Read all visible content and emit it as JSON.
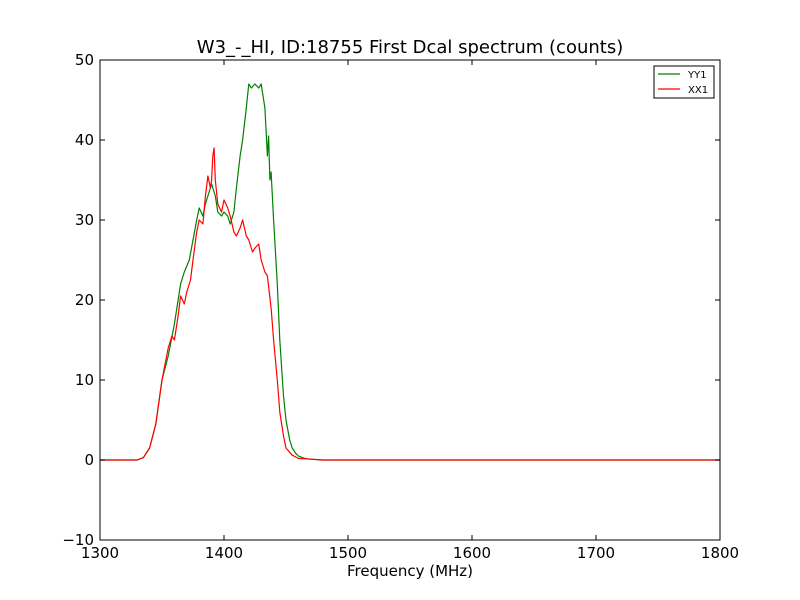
{
  "chart_data": {
    "type": "line",
    "title": "W3_-_HI, ID:18755 First Dcal spectrum (counts)",
    "xlabel": "Frequency (MHz)",
    "ylabel": "",
    "xlim": [
      1300,
      1800
    ],
    "ylim": [
      -10,
      50
    ],
    "xticks": [
      1300,
      1400,
      1500,
      1600,
      1700,
      1800
    ],
    "yticks": [
      -10,
      0,
      10,
      20,
      30,
      40,
      50
    ],
    "xtick_labels": [
      "1300",
      "1400",
      "1500",
      "1600",
      "1700",
      "1800"
    ],
    "ytick_labels": [
      "−10",
      "0",
      "10",
      "20",
      "30",
      "40",
      "50"
    ],
    "grid": false,
    "legend": "top-right",
    "series": [
      {
        "name": "YY1",
        "color": "#008000",
        "x": [
          1300,
          1330,
          1335,
          1340,
          1345,
          1350,
          1355,
          1360,
          1365,
          1368,
          1372,
          1375,
          1378,
          1380,
          1383,
          1385,
          1388,
          1390,
          1393,
          1395,
          1398,
          1400,
          1403,
          1405,
          1408,
          1410,
          1413,
          1415,
          1418,
          1420,
          1422,
          1425,
          1428,
          1430,
          1433,
          1435,
          1436,
          1437,
          1438,
          1440,
          1443,
          1445,
          1448,
          1450,
          1453,
          1455,
          1458,
          1460,
          1465,
          1470,
          1480,
          1500,
          1550,
          1600,
          1700,
          1800
        ],
        "y": [
          0,
          0,
          0.3,
          1.5,
          4.5,
          10,
          13,
          17,
          22,
          23.5,
          25,
          27.5,
          30,
          31.5,
          30.5,
          32,
          33.5,
          34.5,
          33,
          31,
          30.5,
          31,
          30.5,
          29.5,
          31,
          34,
          38,
          40,
          44,
          47,
          46.5,
          47,
          46.5,
          47,
          44,
          38,
          40.5,
          35,
          36,
          30,
          22,
          15,
          8,
          5,
          2.5,
          1.5,
          0.8,
          0.5,
          0.2,
          0.1,
          0,
          0,
          0,
          0,
          0,
          0
        ]
      },
      {
        "name": "XX1",
        "color": "#ff0000",
        "x": [
          1300,
          1330,
          1335,
          1340,
          1345,
          1350,
          1355,
          1358,
          1360,
          1363,
          1365,
          1368,
          1370,
          1373,
          1375,
          1378,
          1380,
          1383,
          1385,
          1387,
          1389,
          1390,
          1391,
          1392,
          1393,
          1395,
          1398,
          1400,
          1403,
          1405,
          1408,
          1410,
          1413,
          1415,
          1418,
          1420,
          1423,
          1425,
          1428,
          1430,
          1433,
          1435,
          1438,
          1440,
          1443,
          1445,
          1448,
          1450,
          1455,
          1460,
          1470,
          1480,
          1500,
          1550,
          1600,
          1700,
          1800
        ],
        "y": [
          0,
          0,
          0.3,
          1.5,
          4.5,
          10,
          14,
          15.5,
          15,
          18,
          20.5,
          19.5,
          21,
          22.5,
          25,
          28.5,
          30,
          29.5,
          33,
          35.5,
          34,
          35,
          38,
          39,
          35,
          32,
          31,
          32.5,
          31.5,
          30.5,
          28.5,
          28,
          29,
          30,
          28,
          27.5,
          26,
          26.5,
          27,
          25,
          23.5,
          23,
          19,
          15,
          10,
          6,
          3,
          1.5,
          0.6,
          0.2,
          0.1,
          0,
          0,
          0,
          0,
          0,
          0
        ]
      }
    ]
  }
}
